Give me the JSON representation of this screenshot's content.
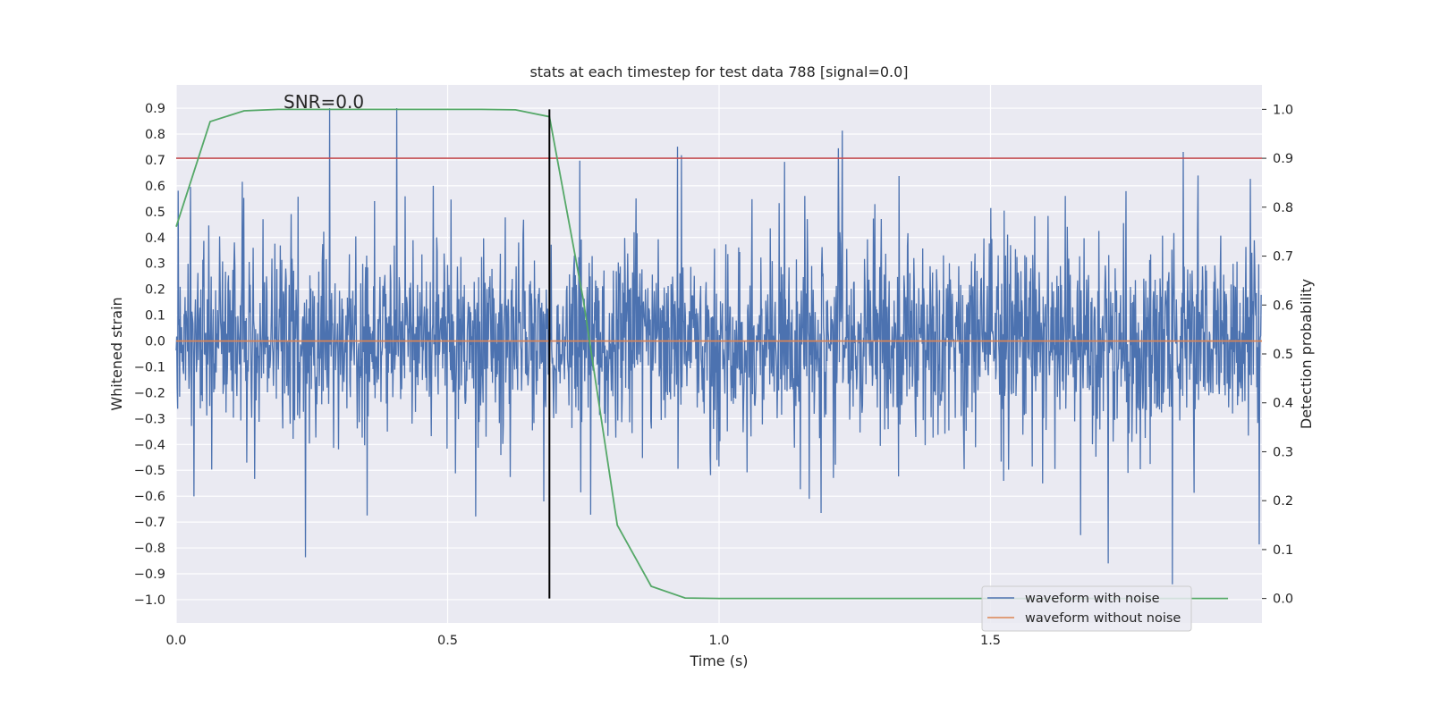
{
  "chart_data": {
    "type": "line",
    "title": "stats at each timestep for test data 788 [signal=0.0]",
    "xlabel": "Time (s)",
    "ylabel_left": "Whitened strain",
    "ylabel_right": "Detection probability",
    "annotation": "SNR=0.0",
    "xlim": [
      0.0,
      2.0
    ],
    "ylim_left": [
      -1.09,
      0.99
    ],
    "ylim_right": [
      -0.05,
      1.05
    ],
    "x_ticks": [
      "0.0",
      "0.5",
      "1.0",
      "1.5"
    ],
    "y_left_ticks": [
      "0.9",
      "0.8",
      "0.7",
      "0.6",
      "0.5",
      "0.4",
      "0.3",
      "0.2",
      "0.1",
      "0.0",
      "-0.1",
      "-0.2",
      "-0.3",
      "-0.4",
      "-0.5",
      "-0.6",
      "-0.7",
      "-0.8",
      "-0.9",
      "-1.0"
    ],
    "y_right_ticks": [
      "1.0",
      "0.9",
      "0.8",
      "0.7",
      "0.6",
      "0.5",
      "0.4",
      "0.3",
      "0.2",
      "0.1",
      "0.0"
    ],
    "grid": true,
    "legend_position": "bottom-right",
    "series": [
      {
        "name": "waveform with noise",
        "axis": "left",
        "color": "#4c72b0",
        "kind": "noise",
        "amplitude_range": [
          -1.0,
          0.9
        ]
      },
      {
        "name": "waveform without noise",
        "axis": "left",
        "color": "#dd8452",
        "x": [
          0.0,
          2.0
        ],
        "y": [
          0.0,
          0.0
        ]
      },
      {
        "name": "",
        "axis": "right",
        "color": "#55a868",
        "x": [
          0.0,
          0.0625,
          0.125,
          0.1875,
          0.25,
          0.3125,
          0.375,
          0.4375,
          0.5,
          0.5625,
          0.625,
          0.6875,
          0.75,
          0.8125,
          0.875,
          0.9375,
          1.0,
          1.0625,
          1.125,
          1.1875,
          1.25,
          1.3125,
          1.375,
          1.4375,
          1.5,
          1.5625,
          1.625,
          1.6875,
          1.75,
          1.8125,
          1.875,
          1.9375
        ],
        "y": [
          0.76,
          0.975,
          0.997,
          1.0,
          1.0,
          1.0,
          1.0,
          1.0,
          1.0,
          1.0,
          0.999,
          0.985,
          0.61,
          0.15,
          0.025,
          0.001,
          0.0,
          0.0,
          0.0,
          0.0,
          0.0,
          0.0,
          0.0,
          0.0,
          0.0,
          0.0,
          0.0,
          0.0,
          0.0,
          0.0,
          0.0,
          0.0
        ]
      }
    ],
    "threshold_line": {
      "axis": "right",
      "value": 0.9,
      "color": "#c44e52"
    },
    "vertical_marker": {
      "x": 0.6875,
      "color": "#000000"
    }
  }
}
